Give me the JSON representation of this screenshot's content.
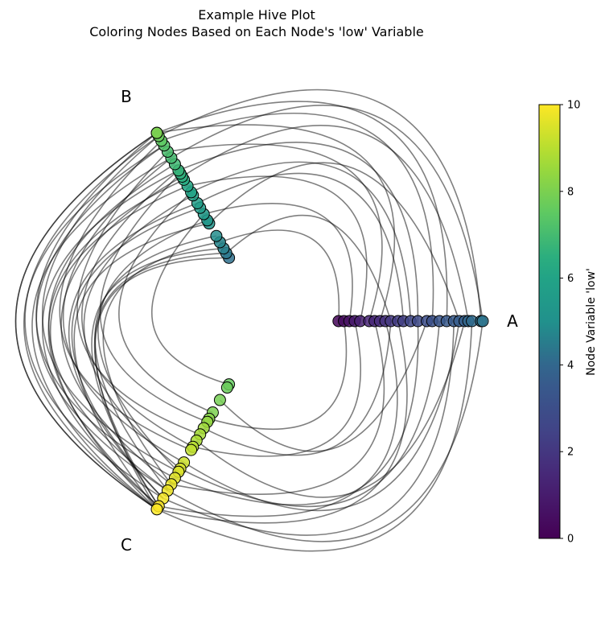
{
  "chart_data": {
    "type": "hive",
    "title": "Example Hive Plot",
    "subtitle": "Coloring Nodes Based on Each Node's 'low' Variable",
    "axes": [
      {
        "name": "A",
        "angle_deg": 0,
        "low_values": [
          0.2,
          0.4,
          0.6,
          0.9,
          1.1,
          1.3,
          1.4,
          1.6,
          1.8,
          2.0,
          2.2,
          2.3,
          2.6,
          2.8,
          3.0,
          3.1,
          3.3,
          3.5,
          3.6,
          3.7,
          3.8,
          4.0,
          4.1,
          4.2,
          4.3
        ],
        "radii": [
          0.2,
          0.23,
          0.26,
          0.29,
          0.32,
          0.37,
          0.4,
          0.43,
          0.46,
          0.49,
          0.53,
          0.56,
          0.6,
          0.64,
          0.69,
          0.72,
          0.76,
          0.8,
          0.84,
          0.87,
          0.9,
          0.92,
          0.94,
          0.99,
          1.0
        ]
      },
      {
        "name": "B",
        "angle_deg": 120,
        "low_values": [
          4.2,
          4.4,
          4.6,
          4.7,
          4.9,
          5.1,
          5.3,
          5.5,
          5.6,
          5.7,
          5.9,
          6.0,
          6.2,
          6.4,
          6.5,
          6.6,
          6.7,
          6.9,
          7.0,
          7.1,
          7.3,
          7.5,
          7.7,
          7.9,
          8.0
        ],
        "radii": [
          0.2,
          0.23,
          0.26,
          0.3,
          0.34,
          0.42,
          0.44,
          0.48,
          0.52,
          0.55,
          0.6,
          0.62,
          0.66,
          0.7,
          0.72,
          0.74,
          0.76,
          0.8,
          0.84,
          0.88,
          0.92,
          0.95,
          0.98,
          1.0,
          1.0
        ]
      },
      {
        "name": "C",
        "angle_deg": 240,
        "low_values": [
          7.6,
          7.7,
          7.9,
          8.0,
          8.2,
          8.4,
          8.6,
          8.7,
          8.8,
          9.0,
          9.1,
          9.3,
          9.4,
          9.5,
          9.6,
          9.7,
          9.8,
          9.9,
          10.0,
          10.0
        ],
        "radii": [
          0.2,
          0.22,
          0.3,
          0.38,
          0.42,
          0.44,
          0.48,
          0.52,
          0.56,
          0.6,
          0.62,
          0.7,
          0.74,
          0.76,
          0.8,
          0.84,
          0.88,
          0.93,
          0.98,
          1.0
        ]
      }
    ],
    "edges": [
      [
        "A",
        0,
        "B",
        3
      ],
      [
        "A",
        2,
        "B",
        7
      ],
      [
        "A",
        4,
        "B",
        12
      ],
      [
        "A",
        5,
        "B",
        19
      ],
      [
        "A",
        7,
        "B",
        23
      ],
      [
        "A",
        9,
        "B",
        1
      ],
      [
        "A",
        11,
        "B",
        9
      ],
      [
        "A",
        13,
        "B",
        16
      ],
      [
        "A",
        15,
        "B",
        21
      ],
      [
        "A",
        17,
        "B",
        24
      ],
      [
        "A",
        19,
        "B",
        5
      ],
      [
        "A",
        21,
        "B",
        14
      ],
      [
        "A",
        23,
        "B",
        22
      ],
      [
        "A",
        24,
        "B",
        18
      ],
      [
        "A",
        12,
        "B",
        11
      ],
      [
        "A",
        1,
        "C",
        4
      ],
      [
        "A",
        3,
        "C",
        9
      ],
      [
        "A",
        6,
        "C",
        15
      ],
      [
        "A",
        8,
        "C",
        18
      ],
      [
        "A",
        10,
        "C",
        19
      ],
      [
        "A",
        14,
        "C",
        2
      ],
      [
        "A",
        16,
        "C",
        12
      ],
      [
        "A",
        18,
        "C",
        17
      ],
      [
        "A",
        20,
        "C",
        8
      ],
      [
        "A",
        22,
        "C",
        19
      ],
      [
        "A",
        24,
        "C",
        16
      ],
      [
        "A",
        19,
        "C",
        11
      ],
      [
        "A",
        13,
        "C",
        14
      ],
      [
        "A",
        9,
        "C",
        6
      ],
      [
        "B",
        0,
        "C",
        19
      ],
      [
        "B",
        2,
        "C",
        18
      ],
      [
        "B",
        4,
        "C",
        16
      ],
      [
        "B",
        6,
        "C",
        13
      ],
      [
        "B",
        8,
        "C",
        17
      ],
      [
        "B",
        10,
        "C",
        12
      ],
      [
        "B",
        12,
        "C",
        19
      ],
      [
        "B",
        14,
        "C",
        15
      ],
      [
        "B",
        16,
        "C",
        18
      ],
      [
        "B",
        18,
        "C",
        11
      ],
      [
        "B",
        20,
        "C",
        19
      ],
      [
        "B",
        22,
        "C",
        17
      ],
      [
        "B",
        24,
        "C",
        14
      ],
      [
        "B",
        23,
        "C",
        19
      ],
      [
        "B",
        21,
        "C",
        10
      ],
      [
        "B",
        19,
        "C",
        7
      ],
      [
        "B",
        17,
        "C",
        16
      ],
      [
        "B",
        15,
        "C",
        5
      ],
      [
        "B",
        13,
        "C",
        18
      ],
      [
        "B",
        11,
        "C",
        3
      ],
      [
        "B",
        9,
        "C",
        17
      ],
      [
        "B",
        7,
        "C",
        0
      ],
      [
        "B",
        5,
        "C",
        19
      ],
      [
        "B",
        3,
        "C",
        15
      ],
      [
        "B",
        1,
        "C",
        18
      ],
      [
        "B",
        24,
        "C",
        19
      ],
      [
        "B",
        22,
        "C",
        13
      ],
      [
        "B",
        20,
        "C",
        16
      ],
      [
        "B",
        18,
        "C",
        19
      ],
      [
        "B",
        16,
        "C",
        9
      ]
    ],
    "colorbar": {
      "label": "Node Variable 'low'",
      "min": 0,
      "max": 10,
      "ticks": [
        "0",
        "2",
        "4",
        "6",
        "8",
        "10"
      ],
      "colormap": "viridis"
    },
    "edge_color": "#000000",
    "node_edge_color": "#000000",
    "grid": false
  }
}
